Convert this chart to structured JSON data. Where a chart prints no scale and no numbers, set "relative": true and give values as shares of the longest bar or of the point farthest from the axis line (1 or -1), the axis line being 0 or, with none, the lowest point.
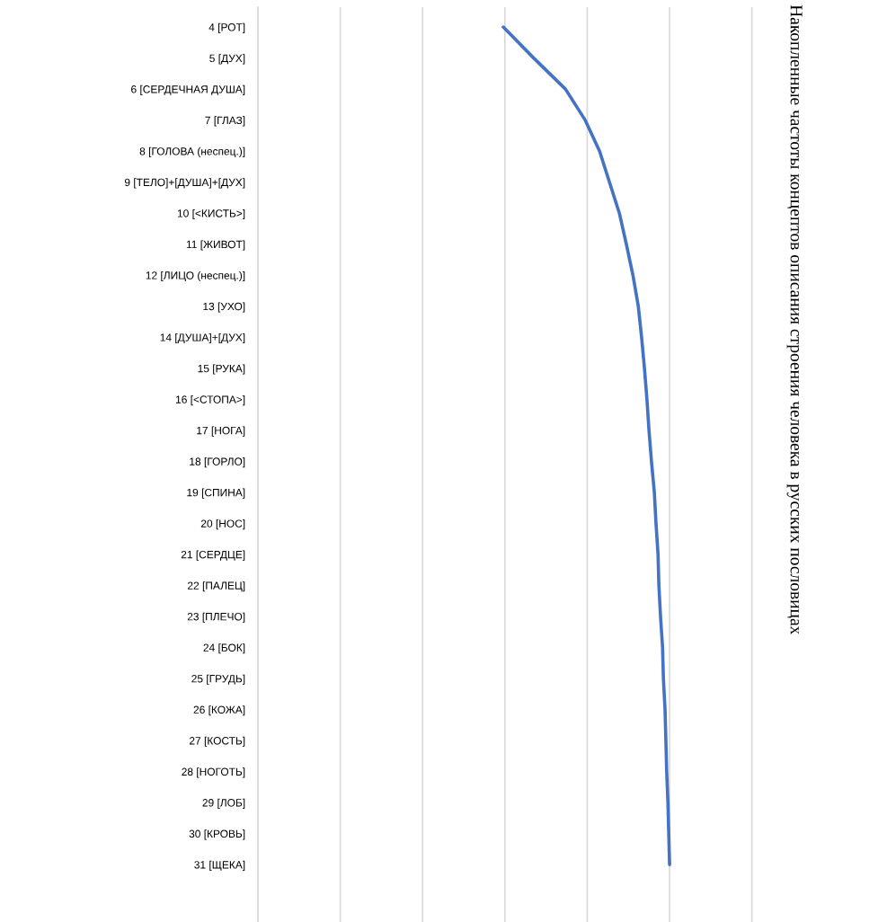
{
  "chart_data": {
    "type": "line",
    "orientation": "horizontal",
    "relative": true,
    "grid": "x",
    "title": "Накопленные частоты концептов описания строения человека в русских пословицах",
    "categories": [
      "4 [РОТ]",
      "5 [ДУХ]",
      "6 [СЕРДЕЧНАЯ ДУША]",
      "7 [ГЛАЗ]",
      "8 [ГОЛОВА (неспец.)]",
      "9 [ТЕЛО]+[ДУША]+[ДУХ]",
      "10 [<КИСТЬ>]",
      "11 [ЖИВОТ]",
      "12 [ЛИЦО (неспец.)]",
      "13 [УХО]",
      "14 [ДУША]+[ДУХ]",
      "15 [РУКА]",
      "16 [<СТОПА>]",
      "17 [НОГА]",
      "18 [ГОРЛО]",
      "19 [СПИНА]",
      "20 [НОС]",
      "21 [СЕРДЦЕ]",
      "22 [ПАЛЕЦ]",
      "23 [ПЛЕЧО]",
      "24 [БОК]",
      "25 [ГРУДЬ]",
      "26 [КОЖА]",
      "27 [КОСТЬ]",
      "28 [НОГОТЬ]",
      "29 [ЛОБ]",
      "30 [КРОВЬ]",
      "31 [ЩЕКА]"
    ],
    "series": [
      {
        "color": "#4472c4",
        "values": [
          0.596,
          0.67,
          0.747,
          0.795,
          0.83,
          0.854,
          0.878,
          0.895,
          0.911,
          0.924,
          0.932,
          0.939,
          0.945,
          0.95,
          0.956,
          0.963,
          0.967,
          0.972,
          0.974,
          0.978,
          0.983,
          0.985,
          0.989,
          0.991,
          0.993,
          0.996,
          0.998,
          1.0
        ]
      }
    ]
  }
}
